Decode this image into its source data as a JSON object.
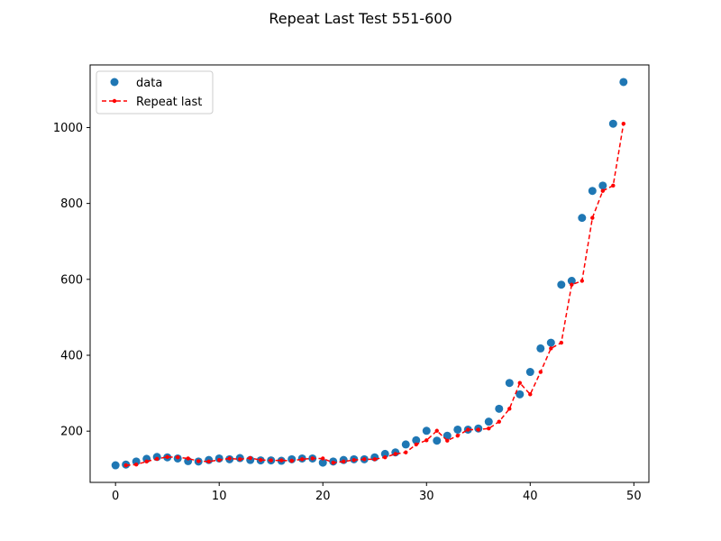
{
  "chart_data": {
    "type": "scatter",
    "title": "Repeat Last Test 551-600",
    "xlabel": "",
    "ylabel": "",
    "xlim": [
      -2.45,
      51.45
    ],
    "ylim": [
      65,
      1165
    ],
    "xticks": [
      0,
      10,
      20,
      30,
      40,
      50
    ],
    "yticks": [
      200,
      400,
      600,
      800,
      1000
    ],
    "grid": false,
    "legend_position": "upper-left",
    "x": [
      0,
      1,
      2,
      3,
      4,
      5,
      6,
      7,
      8,
      9,
      10,
      11,
      12,
      13,
      14,
      15,
      16,
      17,
      18,
      19,
      20,
      21,
      22,
      23,
      24,
      25,
      26,
      27,
      28,
      29,
      30,
      31,
      32,
      33,
      34,
      35,
      36,
      37,
      38,
      39,
      40,
      41,
      42,
      43,
      44,
      45,
      46,
      47,
      48,
      49
    ],
    "series": [
      {
        "name": "data",
        "style": "markers",
        "color": "#1f77b4",
        "values": [
          110,
          112,
          120,
          127,
          132,
          131,
          128,
          121,
          120,
          124,
          128,
          126,
          129,
          124,
          123,
          123,
          122,
          126,
          128,
          128,
          117,
          120,
          124,
          126,
          126,
          131,
          140,
          144,
          165,
          176,
          201,
          175,
          188,
          204,
          204,
          207,
          225,
          259,
          327,
          297,
          356,
          418,
          433,
          586,
          596,
          762,
          833,
          847,
          1010,
          1120
        ]
      },
      {
        "name": "Repeat last",
        "style": "dashed-line-dots",
        "color": "#ff0000",
        "x_start": 1,
        "values": [
          110,
          112,
          120,
          127,
          132,
          131,
          128,
          121,
          120,
          124,
          128,
          126,
          129,
          124,
          123,
          123,
          122,
          126,
          128,
          128,
          117,
          120,
          124,
          126,
          126,
          131,
          140,
          144,
          165,
          176,
          201,
          175,
          188,
          204,
          204,
          207,
          225,
          259,
          327,
          297,
          356,
          418,
          433,
          586,
          596,
          762,
          833,
          847,
          1010
        ]
      }
    ]
  }
}
